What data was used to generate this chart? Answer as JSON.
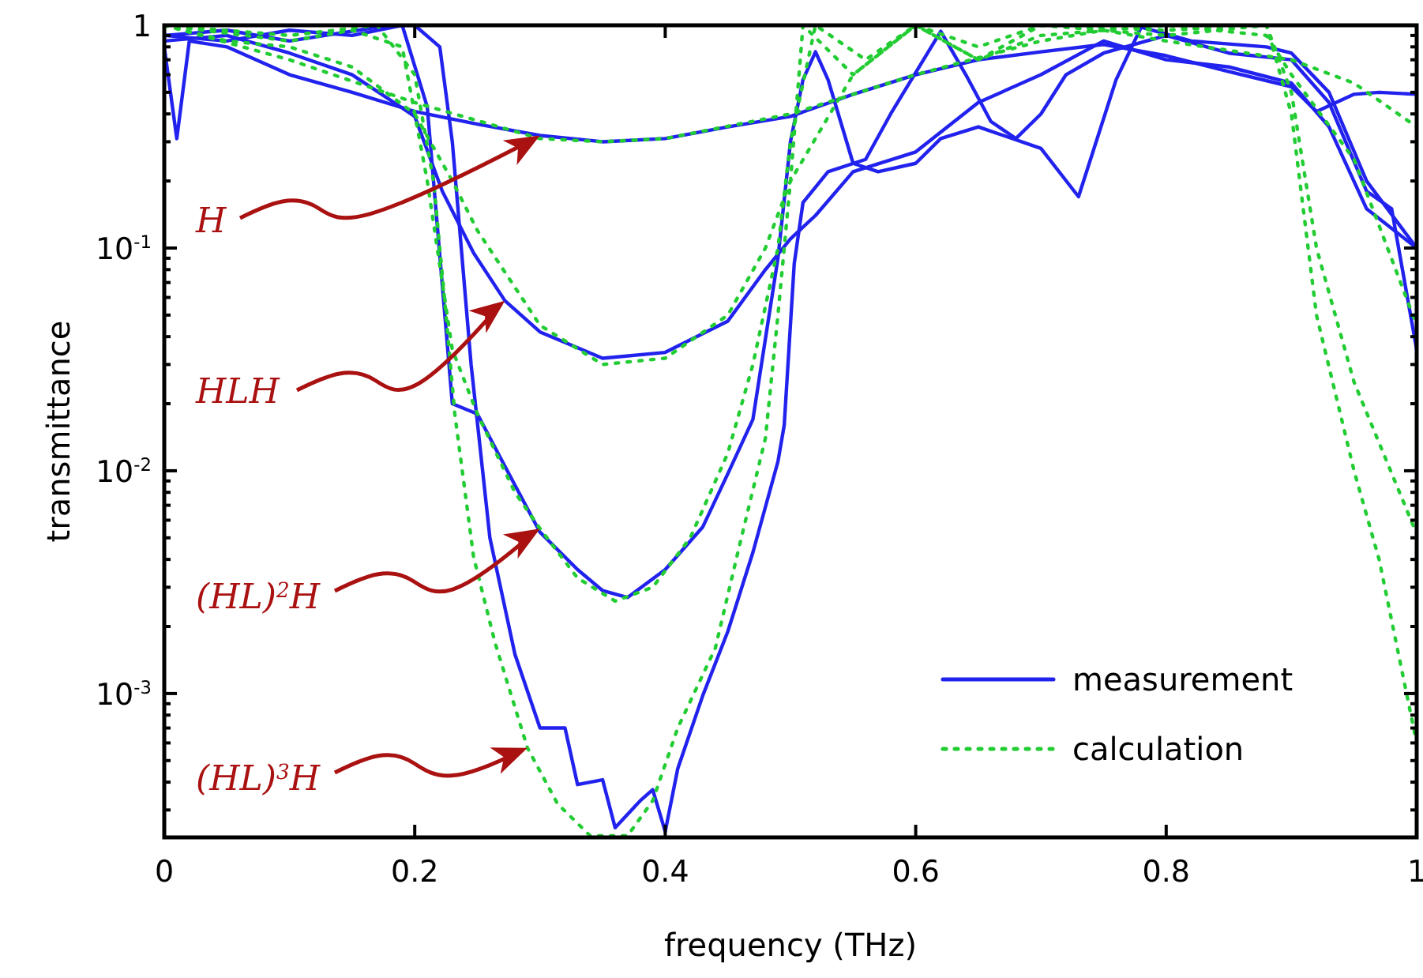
{
  "chart_data": {
    "type": "line",
    "xlabel": "frequency (THz)",
    "ylabel": "transmittance",
    "log": "y",
    "grid": false,
    "legend": "bottom right",
    "xlim": [
      0,
      1
    ],
    "xticks": [
      0,
      0.2,
      0.4,
      0.6,
      0.8,
      1
    ],
    "ylim": [
      0.000226,
      1
    ],
    "yticks": [
      {
        "value": 0.0003,
        "label": null
      },
      {
        "value": 0.0004,
        "label": null
      },
      {
        "value": 0.0005,
        "label": null
      },
      {
        "value": 0.0006,
        "label": null
      },
      {
        "value": 0.0007,
        "label": null
      },
      {
        "value": 0.0008,
        "label": null
      },
      {
        "value": 0.0009,
        "label": null
      },
      {
        "value": 0.001,
        "label": "10$^{-3}$"
      },
      {
        "value": 0.002,
        "label": null
      },
      {
        "value": 0.003,
        "label": null
      },
      {
        "value": 0.004,
        "label": null
      },
      {
        "value": 0.005,
        "label": null
      },
      {
        "value": 0.006,
        "label": null
      },
      {
        "value": 0.007,
        "label": null
      },
      {
        "value": 0.008,
        "label": null
      },
      {
        "value": 0.009,
        "label": null
      },
      {
        "value": 0.01,
        "label": "10$^{-2}$"
      },
      {
        "value": 0.02,
        "label": null
      },
      {
        "value": 0.03,
        "label": null
      },
      {
        "value": 0.04,
        "label": null
      },
      {
        "value": 0.05,
        "label": null
      },
      {
        "value": 0.06,
        "label": null
      },
      {
        "value": 0.07,
        "label": null
      },
      {
        "value": 0.08,
        "label": null
      },
      {
        "value": 0.09,
        "label": null
      },
      {
        "value": 0.1,
        "label": "10$^{-1}$"
      },
      {
        "value": 0.2,
        "label": null
      },
      {
        "value": 0.3,
        "label": null
      },
      {
        "value": 0.4,
        "label": null
      },
      {
        "value": 0.5,
        "label": null
      },
      {
        "value": 0.6,
        "label": null
      },
      {
        "value": 0.7,
        "label": null
      },
      {
        "value": 0.8,
        "label": null
      },
      {
        "value": 0.9,
        "label": null
      },
      1
    ],
    "series": [
      {
        "name": "measurement",
        "color": "#2222ee",
        "line_style": "solid",
        "x": [
          0,
          0.01,
          0.02,
          0.05,
          0.1,
          0.15,
          0.2,
          0.25,
          0.3,
          0.35,
          0.4,
          0.45,
          0.5,
          0.55,
          0.6,
          0.65,
          0.7,
          0.75,
          0.8,
          0.85,
          0.9,
          0.92,
          0.95,
          0.97,
          1
        ],
        "values": [
          0.8,
          0.31,
          0.85,
          0.8,
          0.6,
          0.5,
          0.41,
          0.36,
          0.32,
          0.3,
          0.31,
          0.35,
          0.39,
          0.49,
          0.6,
          0.7,
          0.76,
          0.82,
          0.73,
          0.62,
          0.53,
          0.41,
          0.49,
          0.5,
          0.49
        ]
      },
      {
        "color": "#2222ee",
        "line_style": "solid",
        "x": [
          0,
          0.05,
          0.1,
          0.15,
          0.2,
          0.222,
          0.247,
          0.272,
          0.3,
          0.35,
          0.4,
          0.45,
          0.48,
          0.5,
          0.52,
          0.55,
          0.6,
          0.65,
          0.7,
          0.75,
          0.8,
          0.85,
          0.9,
          0.93,
          0.96,
          1
        ],
        "values": [
          0.85,
          0.9,
          0.75,
          0.6,
          0.39,
          0.18,
          0.095,
          0.058,
          0.042,
          0.032,
          0.034,
          0.047,
          0.08,
          0.11,
          0.14,
          0.22,
          0.27,
          0.45,
          0.6,
          0.85,
          0.7,
          0.65,
          0.55,
          0.35,
          0.15,
          0.1
        ]
      },
      {
        "color": "#2222ee",
        "line_style": "solid",
        "x": [
          0,
          0.05,
          0.1,
          0.15,
          0.19,
          0.21,
          0.23,
          0.25,
          0.27,
          0.3,
          0.33,
          0.35,
          0.37,
          0.4,
          0.43,
          0.45,
          0.47,
          0.49,
          0.5,
          0.51,
          0.52,
          0.53,
          0.55,
          0.57,
          0.6,
          0.62,
          0.65,
          0.7,
          0.73,
          0.76,
          0.78,
          0.82,
          0.88,
          0.9,
          0.93,
          0.96,
          1
        ],
        "values": [
          0.9,
          0.85,
          0.95,
          0.9,
          1,
          0.43,
          0.02,
          0.018,
          0.011,
          0.0053,
          0.0036,
          0.0029,
          0.0027,
          0.0036,
          0.0056,
          0.0097,
          0.017,
          0.09,
          0.3,
          0.57,
          0.76,
          0.57,
          0.24,
          0.22,
          0.24,
          0.31,
          0.35,
          0.28,
          0.17,
          0.57,
          0.98,
          0.85,
          0.8,
          0.75,
          0.5,
          0.2,
          0.1
        ]
      },
      {
        "color": "#2222ee",
        "line_style": "solid",
        "x": [
          0,
          0.05,
          0.1,
          0.18,
          0.2,
          0.22,
          0.23,
          0.245,
          0.26,
          0.28,
          0.3,
          0.32,
          0.33,
          0.35,
          0.36,
          0.38,
          0.39,
          0.4,
          0.41,
          0.43,
          0.45,
          0.47,
          0.49,
          0.495,
          0.503,
          0.51,
          0.53,
          0.56,
          0.58,
          0.62,
          0.64,
          0.66,
          0.68,
          0.7,
          0.72,
          0.75,
          0.8,
          0.85,
          0.9,
          0.93,
          0.96,
          0.98,
          1
        ],
        "values": [
          0.9,
          0.95,
          0.85,
          1,
          1,
          0.8,
          0.3,
          0.03,
          0.005,
          0.0015,
          0.0007,
          0.0007,
          0.00039,
          0.00041,
          0.00025,
          0.00033,
          0.00037,
          0.00024,
          0.00046,
          0.00098,
          0.0019,
          0.0043,
          0.011,
          0.016,
          0.085,
          0.16,
          0.22,
          0.25,
          0.4,
          0.94,
          0.6,
          0.37,
          0.31,
          0.4,
          0.6,
          0.75,
          0.9,
          0.75,
          0.7,
          0.45,
          0.18,
          0.15,
          0.035
        ]
      },
      {
        "name": "calculation",
        "color": "#22cc33",
        "line_style": "dotted",
        "x": [
          0,
          0.1,
          0.2,
          0.3,
          0.35,
          0.4,
          0.5,
          0.6,
          0.7,
          0.75,
          0.8,
          0.9,
          0.95,
          1
        ],
        "values": [
          1,
          0.7,
          0.45,
          0.31,
          0.3,
          0.31,
          0.4,
          0.6,
          0.85,
          0.95,
          0.85,
          0.7,
          0.55,
          0.35
        ]
      },
      {
        "color": "#22cc33",
        "line_style": "dotted",
        "x": [
          0,
          0.05,
          0.1,
          0.15,
          0.2,
          0.23,
          0.25,
          0.3,
          0.35,
          0.4,
          0.45,
          0.48,
          0.5,
          0.55,
          0.6,
          0.65,
          0.7,
          0.8,
          0.88,
          0.9,
          0.95,
          1
        ],
        "values": [
          1,
          0.85,
          0.8,
          0.65,
          0.4,
          0.2,
          0.12,
          0.045,
          0.03,
          0.032,
          0.05,
          0.1,
          0.2,
          0.6,
          1,
          0.7,
          0.9,
          1,
          0.9,
          0.6,
          0.25,
          0.045
        ]
      },
      {
        "color": "#22cc33",
        "line_style": "dotted",
        "x": [
          0,
          0.1,
          0.15,
          0.19,
          0.21,
          0.23,
          0.25,
          0.28,
          0.3,
          0.33,
          0.36,
          0.39,
          0.42,
          0.45,
          0.47,
          0.49,
          0.5,
          0.52,
          0.56,
          0.6,
          0.65,
          0.7,
          0.8,
          0.88,
          0.9,
          0.92,
          0.95,
          1
        ],
        "values": [
          1,
          0.85,
          0.95,
          0.8,
          0.2,
          0.035,
          0.018,
          0.008,
          0.0055,
          0.0033,
          0.0026,
          0.003,
          0.005,
          0.012,
          0.03,
          0.1,
          0.3,
          1,
          0.7,
          1,
          0.8,
          1,
          0.95,
          1,
          0.5,
          0.1,
          0.025,
          0.0052
        ]
      },
      {
        "color": "#22cc33",
        "line_style": "dotted",
        "x": [
          0,
          0.1,
          0.17,
          0.2,
          0.215,
          0.225,
          0.232,
          0.247,
          0.264,
          0.29,
          0.314,
          0.34,
          0.37,
          0.39,
          0.41,
          0.44,
          0.46,
          0.48,
          0.49,
          0.5,
          0.51,
          0.55,
          0.6,
          0.65,
          0.7,
          0.8,
          0.88,
          0.9,
          0.92,
          0.95,
          0.97,
          1
        ],
        "values": [
          1,
          0.9,
          1,
          0.6,
          0.2,
          0.05,
          0.018,
          0.0041,
          0.0017,
          0.00057,
          0.00032,
          0.00023,
          0.00023,
          0.00033,
          0.0007,
          0.0016,
          0.0048,
          0.014,
          0.05,
          0.2,
          1,
          0.6,
          1,
          0.7,
          1,
          0.9,
          1,
          0.4,
          0.05,
          0.01,
          0.004,
          0.0006
        ]
      }
    ],
    "annotations": [
      {
        "text": "H",
        "x": 0.3,
        "y": 0.32
      },
      {
        "text": "HLH",
        "x": 0.272,
        "y": 0.058
      },
      {
        "text": "(HL)$^{2}$H",
        "x": 0.3,
        "y": 0.0055
      },
      {
        "text": "(HL)$^{3}$H",
        "x": 0.29,
        "y": 0.00057
      }
    ]
  }
}
